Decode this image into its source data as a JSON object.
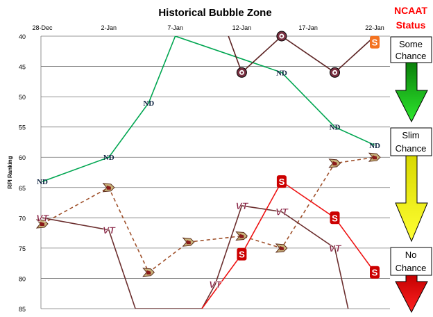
{
  "chart_data": {
    "type": "line",
    "title": "Historical Bubble Zone",
    "xlabel": "",
    "ylabel": "RPI Ranking",
    "x_ticks": [
      "28-Dec",
      "2-Jan",
      "7-Jan",
      "12-Jan",
      "17-Jan",
      "22-Jan"
    ],
    "y_ticks": [
      40,
      45,
      50,
      55,
      60,
      65,
      70,
      75,
      80,
      85
    ],
    "xlim": [
      "28-Dec",
      "22-Jan"
    ],
    "ylim": [
      40,
      85
    ],
    "y_inverted": true,
    "grid": "horizontal",
    "series": [
      {
        "marker": "ND",
        "color": "#00a651",
        "line_style": "solid",
        "points": [
          [
            "28-Dec",
            64
          ],
          [
            "2-Jan",
            60
          ],
          [
            "5-Jan",
            51
          ],
          [
            "7-Jan",
            40
          ],
          [
            "15-Jan",
            46
          ],
          [
            "19-Jan",
            55
          ],
          [
            "22-Jan",
            58
          ]
        ],
        "marked": [
          0,
          1,
          2,
          4,
          5,
          6
        ]
      },
      {
        "marker": "BC",
        "color": "#a0522d",
        "line_style": "dashed",
        "points": [
          [
            "28-Dec",
            71
          ],
          [
            "2-Jan",
            65
          ],
          [
            "5-Jan",
            79
          ],
          [
            "8-Jan",
            74
          ],
          [
            "12-Jan",
            73
          ],
          [
            "15-Jan",
            75
          ],
          [
            "19-Jan",
            61
          ],
          [
            "22-Jan",
            60
          ]
        ],
        "marked": [
          0,
          1,
          2,
          3,
          4,
          5,
          6,
          7
        ]
      },
      {
        "marker": "VT",
        "color": "#6b2e2e",
        "line_style": "solid",
        "points": [
          [
            "28-Dec",
            70
          ],
          [
            "2-Jan",
            72
          ],
          [
            "4-Jan",
            85
          ],
          [
            "9-Jan",
            85
          ],
          [
            "10-Jan",
            81
          ],
          [
            "12-Jan",
            68
          ],
          [
            "15-Jan",
            69
          ],
          [
            "19-Jan",
            75
          ],
          [
            "20-Jan",
            85
          ]
        ],
        "marked": [
          0,
          1,
          4,
          5,
          6,
          7
        ]
      },
      {
        "marker": "NCSU",
        "color": "#ee1111",
        "line_style": "solid",
        "points": [
          [
            "9-Jan",
            85
          ],
          [
            "12-Jan",
            76
          ],
          [
            "15-Jan",
            64
          ],
          [
            "19-Jan",
            70
          ],
          [
            "22-Jan",
            79
          ]
        ],
        "marked": [
          1,
          2,
          3,
          4
        ]
      },
      {
        "marker": "FSU",
        "color": "#5c2323",
        "line_style": "solid",
        "points": [
          [
            "11-Jan",
            40
          ],
          [
            "12-Jan",
            46
          ],
          [
            "15-Jan",
            40
          ],
          [
            "19-Jan",
            46
          ],
          [
            "22-Jan",
            40
          ]
        ],
        "marked": [
          1,
          2,
          3
        ]
      },
      {
        "marker": "Syracuse",
        "color": "#f47321",
        "line_style": "none",
        "points": [
          [
            "22-Jan",
            41
          ]
        ],
        "marked": [
          0
        ]
      }
    ]
  },
  "status_panel": {
    "title_line1": "NCAAT",
    "title_line2": "Status",
    "title_color": "#ff0000",
    "levels": [
      {
        "line1": "Some",
        "line2": "Chance"
      },
      {
        "line1": "Slim",
        "line2": "Chance"
      },
      {
        "line1": "No",
        "line2": "Chance"
      }
    ],
    "arrow_colors": [
      "#22dd22",
      "#ffff00",
      "#ff1a1a"
    ]
  }
}
